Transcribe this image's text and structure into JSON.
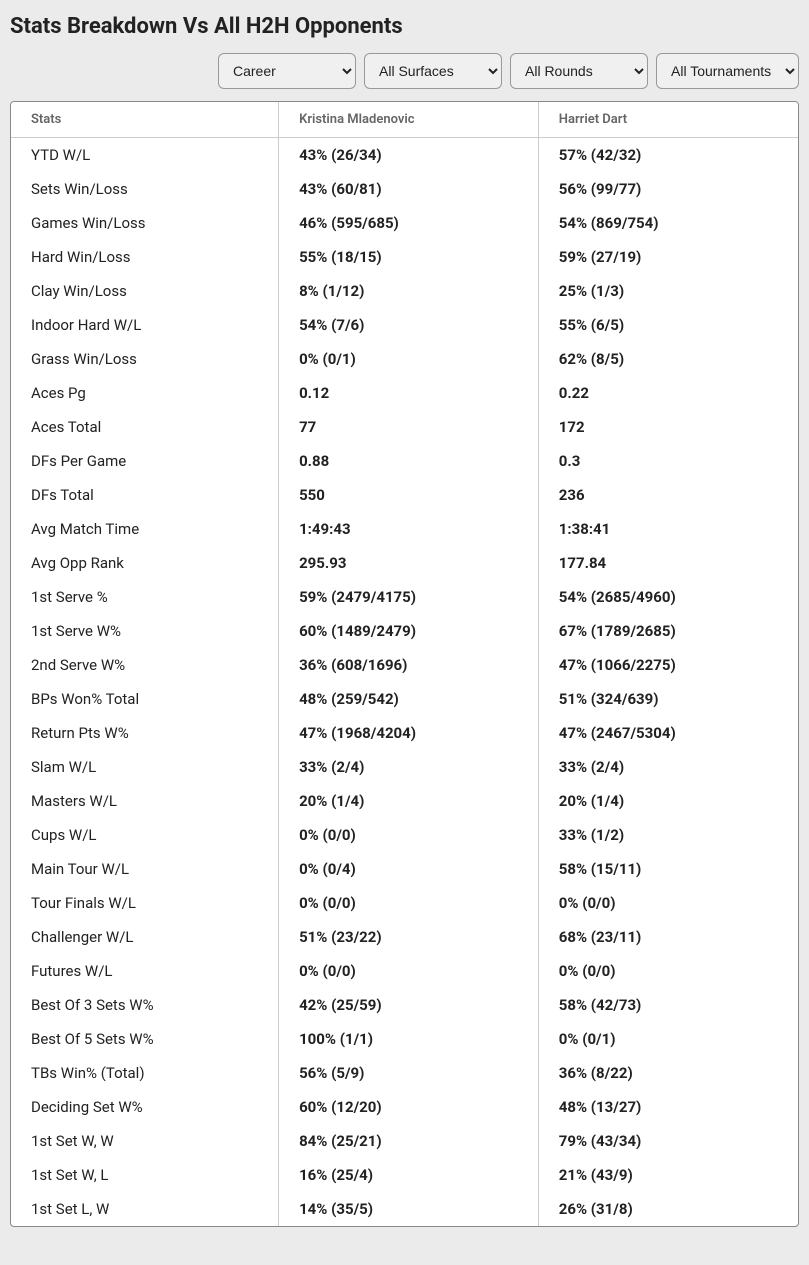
{
  "title": "Stats Breakdown Vs All H2H Opponents",
  "filters": {
    "timeframe": "Career",
    "surface": "All Surfaces",
    "round": "All Rounds",
    "tournament": "All Tournaments"
  },
  "table": {
    "columns": [
      "Stats",
      "Kristina Mladenovic",
      "Harriet Dart"
    ],
    "col_widths": [
      "34%",
      "33%",
      "33%"
    ],
    "header_color": "#666666",
    "header_fontsize": 13,
    "body_fontsize": 15,
    "text_color": "#222222",
    "border_color": "#cccccc",
    "rows": [
      [
        "YTD W/L",
        "43% (26/34)",
        "57% (42/32)"
      ],
      [
        "Sets Win/Loss",
        "43% (60/81)",
        "56% (99/77)"
      ],
      [
        "Games Win/Loss",
        "46% (595/685)",
        "54% (869/754)"
      ],
      [
        "Hard Win/Loss",
        "55% (18/15)",
        "59% (27/19)"
      ],
      [
        "Clay Win/Loss",
        "8% (1/12)",
        "25% (1/3)"
      ],
      [
        "Indoor Hard W/L",
        "54% (7/6)",
        "55% (6/5)"
      ],
      [
        "Grass Win/Loss",
        "0% (0/1)",
        "62% (8/5)"
      ],
      [
        "Aces Pg",
        "0.12",
        "0.22"
      ],
      [
        "Aces Total",
        "77",
        "172"
      ],
      [
        "DFs Per Game",
        "0.88",
        "0.3"
      ],
      [
        "DFs Total",
        "550",
        "236"
      ],
      [
        "Avg Match Time",
        "1:49:43",
        "1:38:41"
      ],
      [
        "Avg Opp Rank",
        "295.93",
        "177.84"
      ],
      [
        "1st Serve %",
        "59% (2479/4175)",
        "54% (2685/4960)"
      ],
      [
        "1st Serve W%",
        "60% (1489/2479)",
        "67% (1789/2685)"
      ],
      [
        "2nd Serve W%",
        "36% (608/1696)",
        "47% (1066/2275)"
      ],
      [
        "BPs Won% Total",
        "48% (259/542)",
        "51% (324/639)"
      ],
      [
        "Return Pts W%",
        "47% (1968/4204)",
        "47% (2467/5304)"
      ],
      [
        "Slam W/L",
        "33% (2/4)",
        "33% (2/4)"
      ],
      [
        "Masters W/L",
        "20% (1/4)",
        "20% (1/4)"
      ],
      [
        "Cups W/L",
        "0% (0/0)",
        "33% (1/2)"
      ],
      [
        "Main Tour W/L",
        "0% (0/4)",
        "58% (15/11)"
      ],
      [
        "Tour Finals W/L",
        "0% (0/0)",
        "0% (0/0)"
      ],
      [
        "Challenger W/L",
        "51% (23/22)",
        "68% (23/11)"
      ],
      [
        "Futures W/L",
        "0% (0/0)",
        "0% (0/0)"
      ],
      [
        "Best Of 3 Sets W%",
        "42% (25/59)",
        "58% (42/73)"
      ],
      [
        "Best Of 5 Sets W%",
        "100% (1/1)",
        "0% (0/1)"
      ],
      [
        "TBs Win% (Total)",
        "56% (5/9)",
        "36% (8/22)"
      ],
      [
        "Deciding Set W%",
        "60% (12/20)",
        "48% (13/27)"
      ],
      [
        "1st Set W, W",
        "84% (25/21)",
        "79% (43/34)"
      ],
      [
        "1st Set W, L",
        "16% (25/4)",
        "21% (43/9)"
      ],
      [
        "1st Set L, W",
        "14% (35/5)",
        "26% (31/8)"
      ]
    ]
  },
  "colors": {
    "background": "#ebebeb",
    "panel_bg": "#ffffff",
    "panel_border": "#888888",
    "select_bg": "#f0f0f0",
    "select_border": "#999999"
  }
}
